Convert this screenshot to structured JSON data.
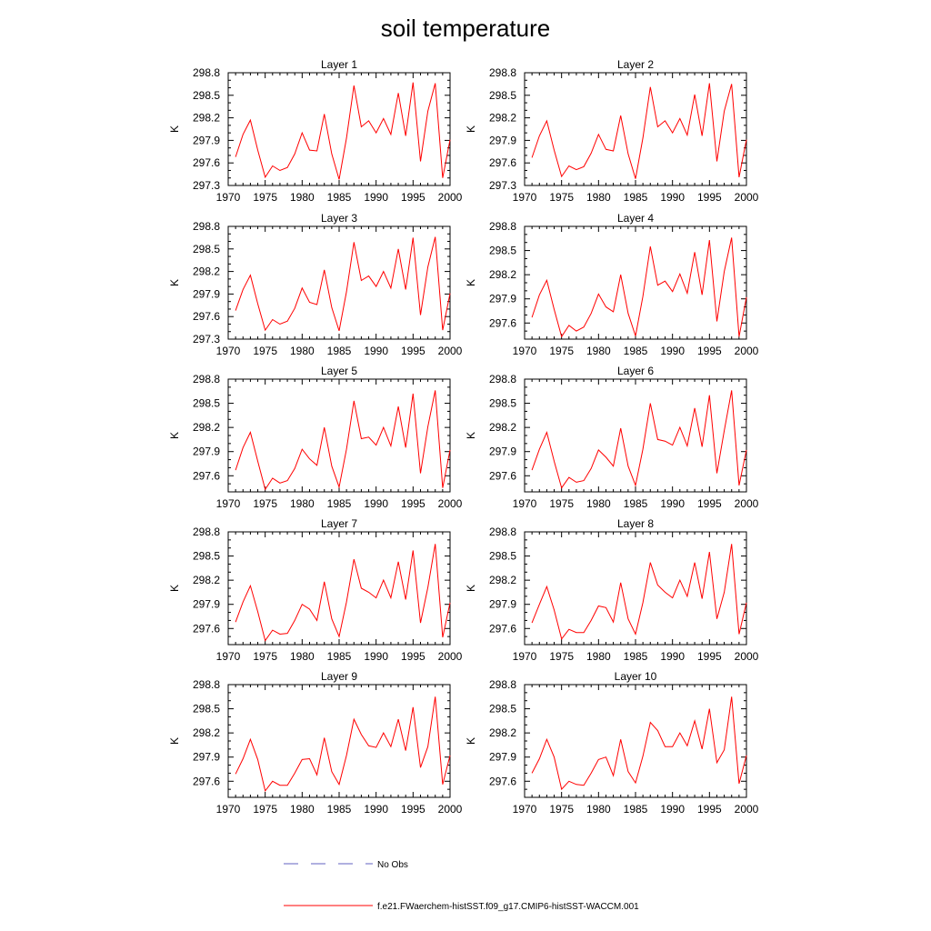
{
  "title": "soil temperature",
  "legend": {
    "no_obs_label": "No Obs",
    "no_obs_color": "#6060c0",
    "model_label": "f.e21.FWaerchem-histSST.f09_g17.CMIP6-histSST-WACCM.001",
    "model_color": "#ff0000"
  },
  "chart_data": [
    {
      "type": "line",
      "title": "Layer 1",
      "xlabel": "",
      "ylabel": "K",
      "xlim": [
        1970,
        2000
      ],
      "ylim": [
        297.3,
        298.8
      ],
      "xticks": [
        1970,
        1975,
        1980,
        1985,
        1990,
        1995,
        2000
      ],
      "yticks": [
        297.3,
        297.6,
        297.9,
        298.2,
        298.5,
        298.8
      ],
      "x": [
        1971,
        1972,
        1973,
        1974,
        1975,
        1976,
        1977,
        1978,
        1979,
        1980,
        1981,
        1982,
        1983,
        1984,
        1985,
        1986,
        1987,
        1988,
        1989,
        1990,
        1991,
        1992,
        1993,
        1994,
        1995,
        1996,
        1997,
        1998,
        1999,
        2000
      ],
      "series": [
        {
          "name": "f.e21.FWaerchem-histSST.f09_g17.CMIP6-histSST-WACCM.001",
          "values": [
            297.68,
            297.98,
            298.17,
            297.77,
            297.41,
            297.56,
            297.5,
            297.54,
            297.72,
            298.0,
            297.77,
            297.76,
            298.25,
            297.72,
            297.38,
            297.93,
            298.63,
            298.08,
            298.16,
            298.0,
            298.19,
            297.98,
            298.53,
            297.96,
            298.67,
            297.62,
            298.29,
            298.66,
            297.4,
            297.91
          ]
        }
      ]
    },
    {
      "type": "line",
      "title": "Layer 2",
      "xlabel": "",
      "ylabel": "K",
      "xlim": [
        1970,
        2000
      ],
      "ylim": [
        297.3,
        298.8
      ],
      "xticks": [
        1970,
        1975,
        1980,
        1985,
        1990,
        1995,
        2000
      ],
      "yticks": [
        297.3,
        297.6,
        297.9,
        298.2,
        298.5,
        298.8
      ],
      "x": [
        1971,
        1972,
        1973,
        1974,
        1975,
        1976,
        1977,
        1978,
        1979,
        1980,
        1981,
        1982,
        1983,
        1984,
        1985,
        1986,
        1987,
        1988,
        1989,
        1990,
        1991,
        1992,
        1993,
        1994,
        1995,
        1996,
        1997,
        1998,
        1999,
        2000
      ],
      "series": [
        {
          "name": "f.e21.FWaerchem-histSST.f09_g17.CMIP6-histSST-WACCM.001",
          "values": [
            297.67,
            297.96,
            298.16,
            297.77,
            297.42,
            297.56,
            297.51,
            297.55,
            297.73,
            297.98,
            297.78,
            297.76,
            298.23,
            297.72,
            297.39,
            297.93,
            298.61,
            298.08,
            298.16,
            298.0,
            298.19,
            297.97,
            298.51,
            297.96,
            298.66,
            297.62,
            298.29,
            298.65,
            297.41,
            297.91
          ]
        }
      ]
    },
    {
      "type": "line",
      "title": "Layer 3",
      "xlabel": "",
      "ylabel": "K",
      "xlim": [
        1970,
        2000
      ],
      "ylim": [
        297.3,
        298.8
      ],
      "xticks": [
        1970,
        1975,
        1980,
        1985,
        1990,
        1995,
        2000
      ],
      "yticks": [
        297.3,
        297.6,
        297.9,
        298.2,
        298.5,
        298.8
      ],
      "x": [
        1971,
        1972,
        1973,
        1974,
        1975,
        1976,
        1977,
        1978,
        1979,
        1980,
        1981,
        1982,
        1983,
        1984,
        1985,
        1986,
        1987,
        1988,
        1989,
        1990,
        1991,
        1992,
        1993,
        1994,
        1995,
        1996,
        1997,
        1998,
        1999,
        2000
      ],
      "series": [
        {
          "name": "f.e21.FWaerchem-histSST.f09_g17.CMIP6-histSST-WACCM.001",
          "values": [
            297.68,
            297.96,
            298.15,
            297.77,
            297.42,
            297.56,
            297.5,
            297.54,
            297.71,
            297.98,
            297.79,
            297.76,
            298.22,
            297.72,
            297.41,
            297.93,
            298.59,
            298.08,
            298.14,
            298.0,
            298.2,
            297.98,
            298.5,
            297.96,
            298.65,
            297.62,
            298.26,
            298.66,
            297.42,
            297.91
          ]
        }
      ]
    },
    {
      "type": "line",
      "title": "Layer 4",
      "xlabel": "",
      "ylabel": "K",
      "xlim": [
        1970,
        2000
      ],
      "ylim": [
        297.4,
        298.8
      ],
      "xticks": [
        1970,
        1975,
        1980,
        1985,
        1990,
        1995,
        2000
      ],
      "yticks": [
        297.6,
        297.9,
        298.2,
        298.5,
        298.8
      ],
      "x": [
        1971,
        1972,
        1973,
        1974,
        1975,
        1976,
        1977,
        1978,
        1979,
        1980,
        1981,
        1982,
        1983,
        1984,
        1985,
        1986,
        1987,
        1988,
        1989,
        1990,
        1991,
        1992,
        1993,
        1994,
        1995,
        1996,
        1997,
        1998,
        1999,
        2000
      ],
      "series": [
        {
          "name": "f.e21.FWaerchem-histSST.f09_g17.CMIP6-histSST-WACCM.001",
          "values": [
            297.67,
            297.95,
            298.13,
            297.77,
            297.43,
            297.57,
            297.5,
            297.55,
            297.72,
            297.96,
            297.8,
            297.74,
            298.2,
            297.72,
            297.44,
            297.93,
            298.55,
            298.07,
            298.12,
            297.99,
            298.21,
            297.97,
            298.48,
            297.95,
            298.63,
            297.62,
            298.24,
            298.66,
            297.43,
            297.92
          ]
        }
      ]
    },
    {
      "type": "line",
      "title": "Layer 5",
      "xlabel": "",
      "ylabel": "K",
      "xlim": [
        1970,
        2000
      ],
      "ylim": [
        297.4,
        298.8
      ],
      "xticks": [
        1970,
        1975,
        1980,
        1985,
        1990,
        1995,
        2000
      ],
      "yticks": [
        297.6,
        297.9,
        298.2,
        298.5,
        298.8
      ],
      "x": [
        1971,
        1972,
        1973,
        1974,
        1975,
        1976,
        1977,
        1978,
        1979,
        1980,
        1981,
        1982,
        1983,
        1984,
        1985,
        1986,
        1987,
        1988,
        1989,
        1990,
        1991,
        1992,
        1993,
        1994,
        1995,
        1996,
        1997,
        1998,
        1999,
        2000
      ],
      "series": [
        {
          "name": "f.e21.FWaerchem-histSST.f09_g17.CMIP6-histSST-WACCM.001",
          "values": [
            297.67,
            297.95,
            298.14,
            297.78,
            297.43,
            297.57,
            297.51,
            297.54,
            297.69,
            297.93,
            297.81,
            297.73,
            298.2,
            297.72,
            297.46,
            297.93,
            298.53,
            298.06,
            298.08,
            297.98,
            298.2,
            297.97,
            298.46,
            297.95,
            298.62,
            297.63,
            298.21,
            298.66,
            297.45,
            297.92
          ]
        }
      ]
    },
    {
      "type": "line",
      "title": "Layer 6",
      "xlabel": "",
      "ylabel": "K",
      "xlim": [
        1970,
        2000
      ],
      "ylim": [
        297.4,
        298.8
      ],
      "xticks": [
        1970,
        1975,
        1980,
        1985,
        1990,
        1995,
        2000
      ],
      "yticks": [
        297.6,
        297.9,
        298.2,
        298.5,
        298.8
      ],
      "x": [
        1971,
        1972,
        1973,
        1974,
        1975,
        1976,
        1977,
        1978,
        1979,
        1980,
        1981,
        1982,
        1983,
        1984,
        1985,
        1986,
        1987,
        1988,
        1989,
        1990,
        1991,
        1992,
        1993,
        1994,
        1995,
        1996,
        1997,
        1998,
        1999,
        2000
      ],
      "series": [
        {
          "name": "f.e21.FWaerchem-histSST.f09_g17.CMIP6-histSST-WACCM.001",
          "values": [
            297.67,
            297.93,
            298.14,
            297.78,
            297.45,
            297.58,
            297.52,
            297.54,
            297.69,
            297.92,
            297.83,
            297.72,
            298.19,
            297.72,
            297.48,
            297.93,
            298.5,
            298.05,
            298.03,
            297.98,
            298.2,
            297.97,
            298.44,
            297.96,
            298.6,
            297.63,
            298.16,
            298.66,
            297.48,
            297.92
          ]
        }
      ]
    },
    {
      "type": "line",
      "title": "Layer 7",
      "xlabel": "",
      "ylabel": "K",
      "xlim": [
        1970,
        2000
      ],
      "ylim": [
        297.4,
        298.8
      ],
      "xticks": [
        1970,
        1975,
        1980,
        1985,
        1990,
        1995,
        2000
      ],
      "yticks": [
        297.6,
        297.9,
        298.2,
        298.5,
        298.8
      ],
      "x": [
        1971,
        1972,
        1973,
        1974,
        1975,
        1976,
        1977,
        1978,
        1979,
        1980,
        1981,
        1982,
        1983,
        1984,
        1985,
        1986,
        1987,
        1988,
        1989,
        1990,
        1991,
        1992,
        1993,
        1994,
        1995,
        1996,
        1997,
        1998,
        1999,
        2000
      ],
      "series": [
        {
          "name": "f.e21.FWaerchem-histSST.f09_g17.CMIP6-histSST-WACCM.001",
          "values": [
            297.68,
            297.93,
            298.13,
            297.81,
            297.45,
            297.58,
            297.53,
            297.54,
            297.7,
            297.9,
            297.84,
            297.7,
            298.18,
            297.72,
            297.5,
            297.93,
            298.46,
            298.1,
            298.05,
            297.98,
            298.2,
            297.98,
            298.43,
            297.96,
            298.57,
            297.67,
            298.11,
            298.65,
            297.49,
            297.92
          ]
        }
      ]
    },
    {
      "type": "line",
      "title": "Layer 8",
      "xlabel": "",
      "ylabel": "K",
      "xlim": [
        1970,
        2000
      ],
      "ylim": [
        297.4,
        298.8
      ],
      "xticks": [
        1970,
        1975,
        1980,
        1985,
        1990,
        1995,
        2000
      ],
      "yticks": [
        297.6,
        297.9,
        298.2,
        298.5,
        298.8
      ],
      "x": [
        1971,
        1972,
        1973,
        1974,
        1975,
        1976,
        1977,
        1978,
        1979,
        1980,
        1981,
        1982,
        1983,
        1984,
        1985,
        1986,
        1987,
        1988,
        1989,
        1990,
        1991,
        1992,
        1993,
        1994,
        1995,
        1996,
        1997,
        1998,
        1999,
        2000
      ],
      "series": [
        {
          "name": "f.e21.FWaerchem-histSST.f09_g17.CMIP6-histSST-WACCM.001",
          "values": [
            297.67,
            297.9,
            298.12,
            297.83,
            297.47,
            297.59,
            297.55,
            297.55,
            297.7,
            297.88,
            297.86,
            297.68,
            298.17,
            297.72,
            297.53,
            297.92,
            298.42,
            298.14,
            298.05,
            297.98,
            298.2,
            298.0,
            298.42,
            297.97,
            298.55,
            297.72,
            298.05,
            298.65,
            297.53,
            297.92
          ]
        }
      ]
    },
    {
      "type": "line",
      "title": "Layer 9",
      "xlabel": "",
      "ylabel": "K",
      "xlim": [
        1970,
        2000
      ],
      "ylim": [
        297.4,
        298.8
      ],
      "xticks": [
        1970,
        1975,
        1980,
        1985,
        1990,
        1995,
        2000
      ],
      "yticks": [
        297.6,
        297.9,
        298.2,
        298.5,
        298.8
      ],
      "x": [
        1971,
        1972,
        1973,
        1974,
        1975,
        1976,
        1977,
        1978,
        1979,
        1980,
        1981,
        1982,
        1983,
        1984,
        1985,
        1986,
        1987,
        1988,
        1989,
        1990,
        1991,
        1992,
        1993,
        1994,
        1995,
        1996,
        1997,
        1998,
        1999,
        2000
      ],
      "series": [
        {
          "name": "f.e21.FWaerchem-histSST.f09_g17.CMIP6-histSST-WACCM.001",
          "values": [
            297.69,
            297.88,
            298.12,
            297.87,
            297.48,
            297.6,
            297.55,
            297.55,
            297.7,
            297.87,
            297.88,
            297.68,
            298.14,
            297.72,
            297.56,
            297.92,
            298.37,
            298.18,
            298.04,
            298.02,
            298.2,
            298.03,
            298.37,
            297.98,
            298.52,
            297.77,
            298.03,
            298.65,
            297.56,
            297.92
          ]
        }
      ]
    },
    {
      "type": "line",
      "title": "Layer 10",
      "xlabel": "",
      "ylabel": "K",
      "xlim": [
        1970,
        2000
      ],
      "ylim": [
        297.4,
        298.8
      ],
      "xticks": [
        1970,
        1975,
        1980,
        1985,
        1990,
        1995,
        2000
      ],
      "yticks": [
        297.6,
        297.9,
        298.2,
        298.5,
        298.8
      ],
      "x": [
        1971,
        1972,
        1973,
        1974,
        1975,
        1976,
        1977,
        1978,
        1979,
        1980,
        1981,
        1982,
        1983,
        1984,
        1985,
        1986,
        1987,
        1988,
        1989,
        1990,
        1991,
        1992,
        1993,
        1994,
        1995,
        1996,
        1997,
        1998,
        1999,
        2000
      ],
      "series": [
        {
          "name": "f.e21.FWaerchem-histSST.f09_g17.CMIP6-histSST-WACCM.001",
          "values": [
            297.7,
            297.88,
            298.12,
            297.9,
            297.5,
            297.6,
            297.56,
            297.55,
            297.7,
            297.87,
            297.9,
            297.67,
            298.12,
            297.72,
            297.58,
            297.91,
            298.33,
            298.23,
            298.03,
            298.03,
            298.2,
            298.04,
            298.35,
            298.0,
            298.5,
            297.83,
            297.99,
            298.65,
            297.57,
            297.92
          ]
        }
      ]
    }
  ]
}
